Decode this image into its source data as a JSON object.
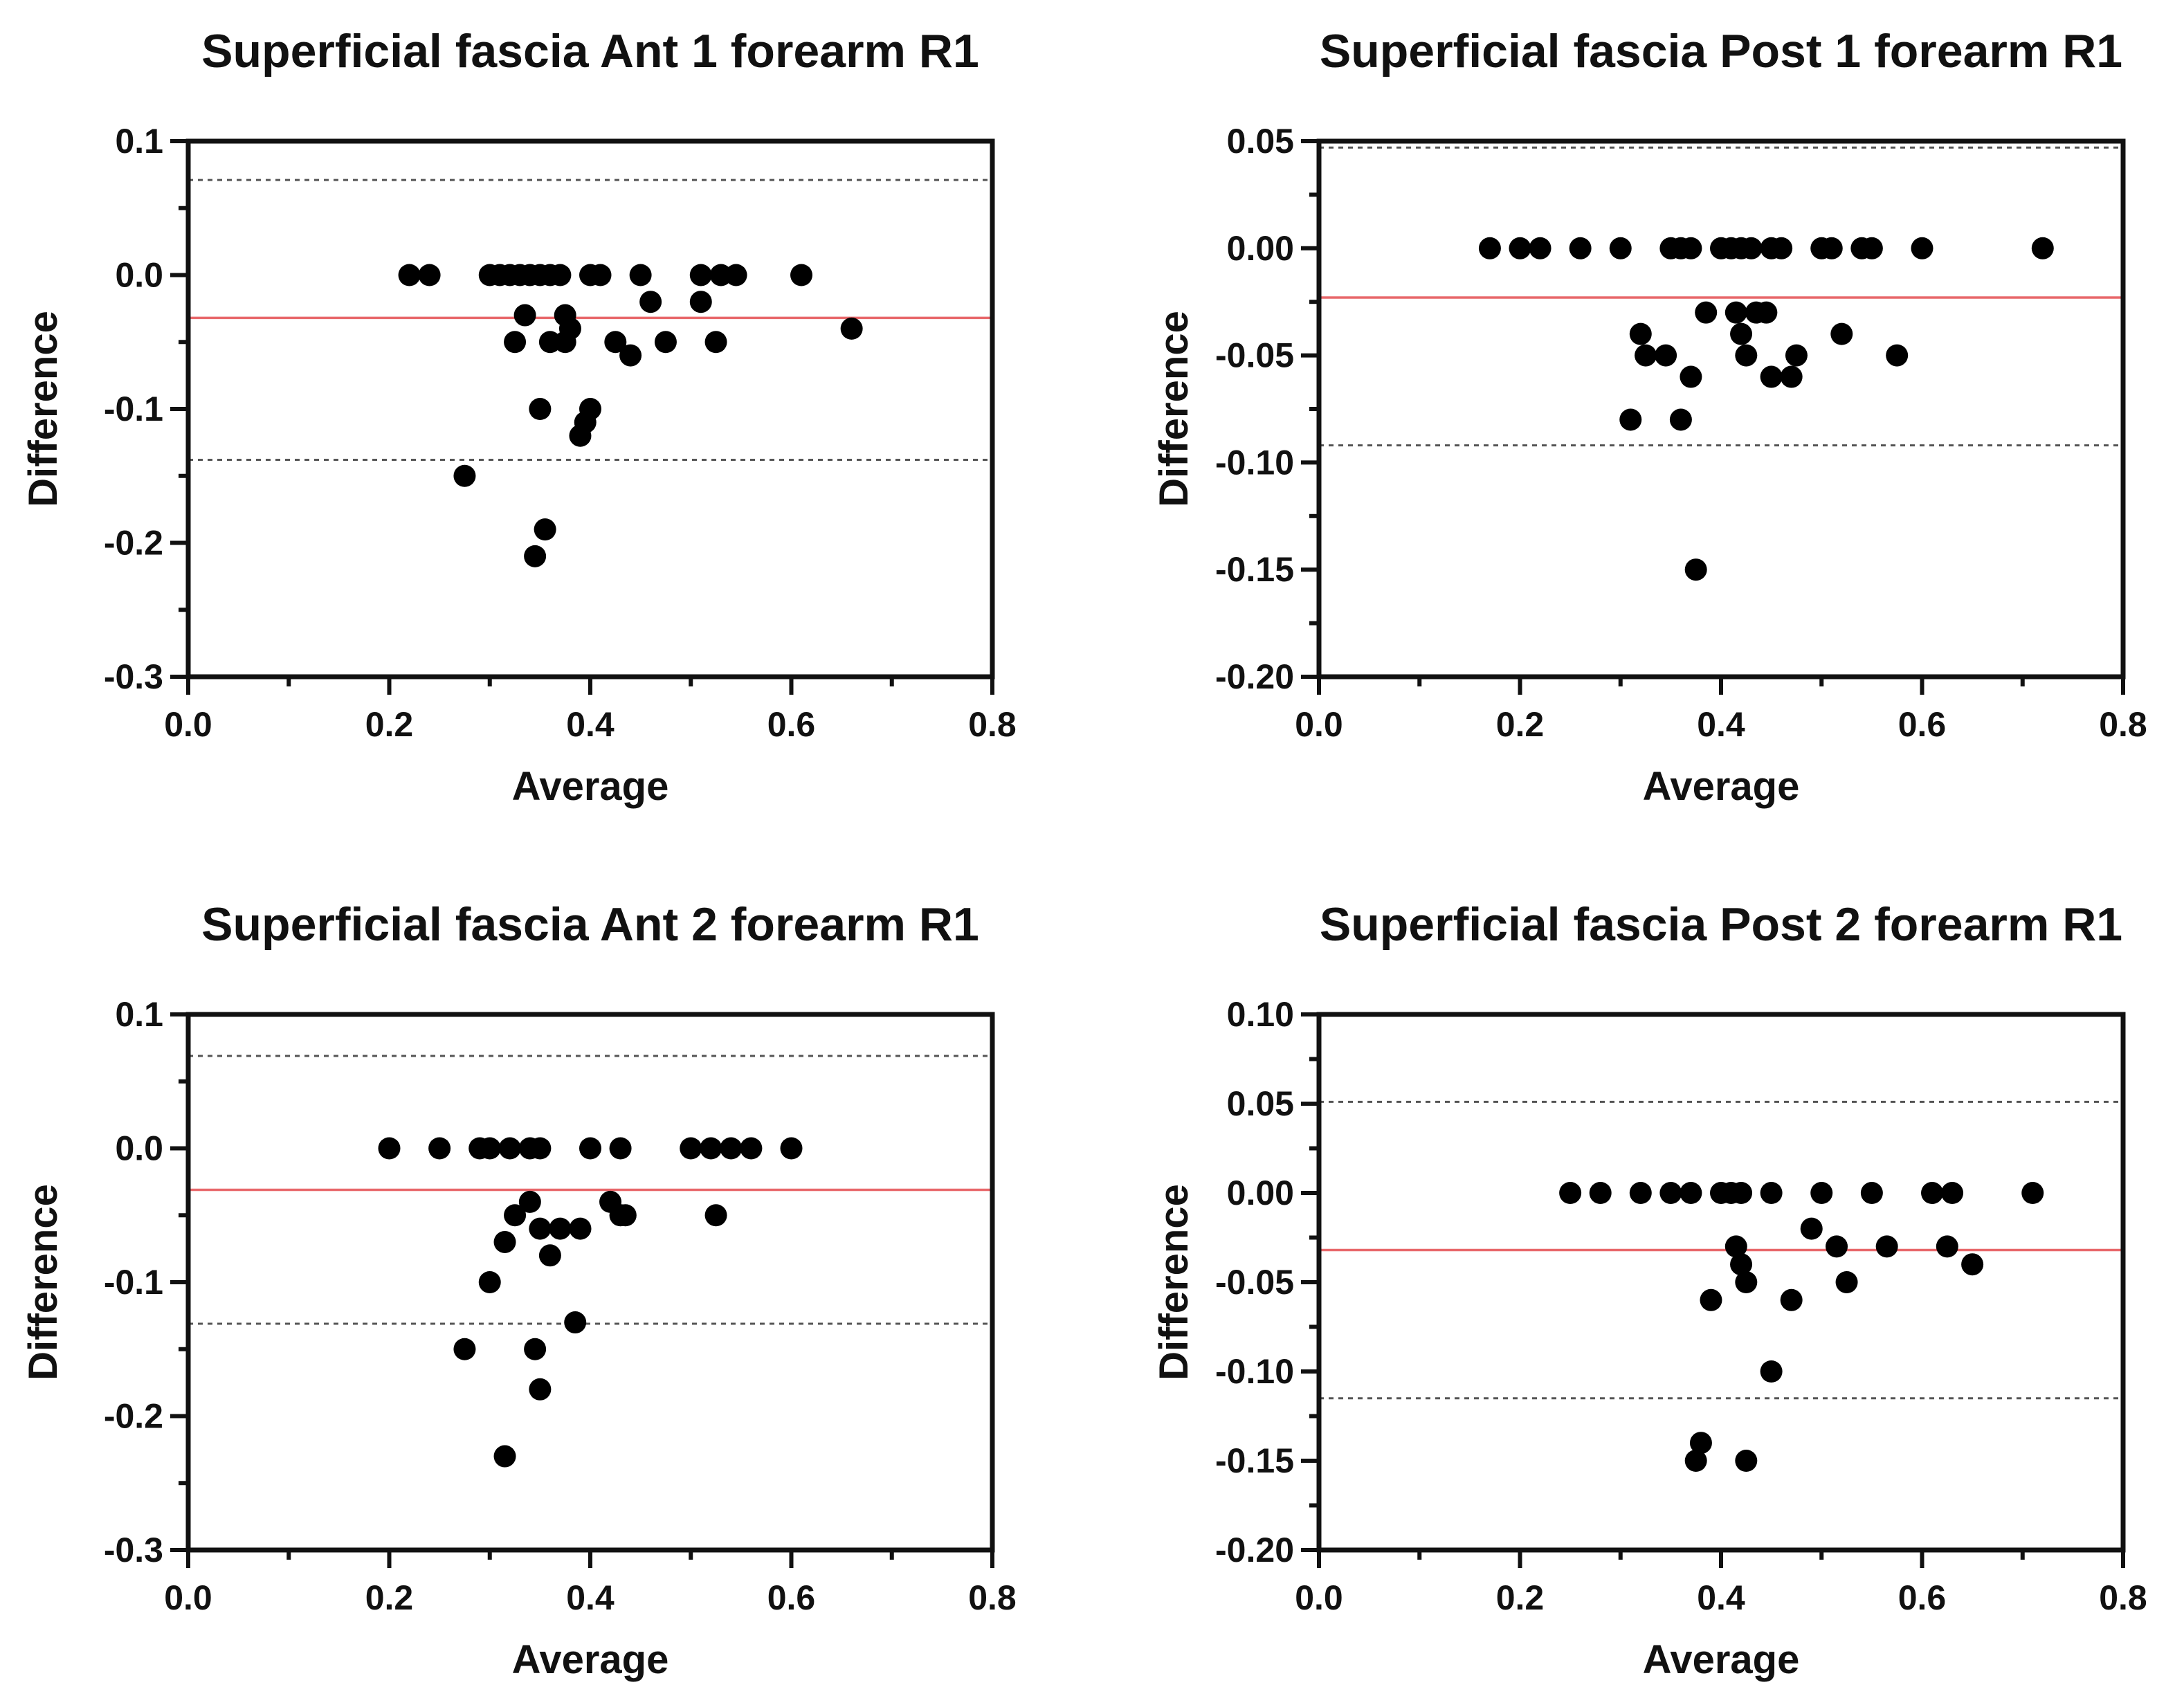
{
  "colors": {
    "bias": "#e8686b",
    "points": "#000000",
    "loa": "#555555"
  },
  "chart_data": [
    {
      "type": "scatter",
      "title": "Superficial fascia Ant 1 forearm R1",
      "xlabel": "Average",
      "ylabel": "Difference",
      "xlim": [
        0.0,
        0.8
      ],
      "ylim": [
        -0.3,
        0.1
      ],
      "xticks": [
        "0.0",
        "0.2",
        "0.4",
        "0.6",
        "0.8"
      ],
      "yticks": [
        "0.1",
        "0.0",
        "-0.1",
        "-0.2",
        "-0.3"
      ],
      "bias": -0.032,
      "loa_upper": 0.071,
      "loa_lower": -0.138,
      "points": [
        [
          0.22,
          0
        ],
        [
          0.24,
          0
        ],
        [
          0.3,
          0
        ],
        [
          0.31,
          0
        ],
        [
          0.32,
          0
        ],
        [
          0.33,
          0
        ],
        [
          0.34,
          0
        ],
        [
          0.35,
          0
        ],
        [
          0.36,
          0
        ],
        [
          0.37,
          0
        ],
        [
          0.4,
          0
        ],
        [
          0.41,
          0
        ],
        [
          0.45,
          0
        ],
        [
          0.51,
          0
        ],
        [
          0.53,
          0
        ],
        [
          0.545,
          0
        ],
        [
          0.61,
          0
        ],
        [
          0.46,
          -0.02
        ],
        [
          0.51,
          -0.02
        ],
        [
          0.335,
          -0.03
        ],
        [
          0.375,
          -0.03
        ],
        [
          0.38,
          -0.04
        ],
        [
          0.66,
          -0.04
        ],
        [
          0.325,
          -0.05
        ],
        [
          0.36,
          -0.05
        ],
        [
          0.375,
          -0.05
        ],
        [
          0.425,
          -0.05
        ],
        [
          0.475,
          -0.05
        ],
        [
          0.525,
          -0.05
        ],
        [
          0.44,
          -0.06
        ],
        [
          0.35,
          -0.1
        ],
        [
          0.4,
          -0.1
        ],
        [
          0.395,
          -0.11
        ],
        [
          0.39,
          -0.12
        ],
        [
          0.275,
          -0.15
        ],
        [
          0.355,
          -0.19
        ],
        [
          0.345,
          -0.21
        ]
      ]
    },
    {
      "type": "scatter",
      "title": "Superficial fascia Post 1 forearm R1",
      "xlabel": "Average",
      "ylabel": "Difference",
      "xlim": [
        0.0,
        0.8
      ],
      "ylim": [
        -0.2,
        0.05
      ],
      "xticks": [
        "0.0",
        "0.2",
        "0.4",
        "0.6",
        "0.8"
      ],
      "yticks": [
        "0.05",
        "0.00",
        "-0.05",
        "-0.10",
        "-0.15",
        "-0.20"
      ],
      "bias": -0.023,
      "loa_upper": 0.047,
      "loa_lower": -0.092,
      "points": [
        [
          0.17,
          0
        ],
        [
          0.2,
          0
        ],
        [
          0.22,
          0
        ],
        [
          0.26,
          0
        ],
        [
          0.3,
          0
        ],
        [
          0.35,
          0
        ],
        [
          0.36,
          0
        ],
        [
          0.37,
          0
        ],
        [
          0.4,
          0
        ],
        [
          0.41,
          0
        ],
        [
          0.42,
          0
        ],
        [
          0.43,
          0
        ],
        [
          0.45,
          0
        ],
        [
          0.46,
          0
        ],
        [
          0.5,
          0
        ],
        [
          0.51,
          0
        ],
        [
          0.54,
          0
        ],
        [
          0.55,
          0
        ],
        [
          0.6,
          0
        ],
        [
          0.72,
          0
        ],
        [
          0.385,
          -0.03
        ],
        [
          0.415,
          -0.03
        ],
        [
          0.435,
          -0.03
        ],
        [
          0.445,
          -0.03
        ],
        [
          0.32,
          -0.04
        ],
        [
          0.42,
          -0.04
        ],
        [
          0.52,
          -0.04
        ],
        [
          0.325,
          -0.05
        ],
        [
          0.345,
          -0.05
        ],
        [
          0.425,
          -0.05
        ],
        [
          0.475,
          -0.05
        ],
        [
          0.575,
          -0.05
        ],
        [
          0.37,
          -0.06
        ],
        [
          0.45,
          -0.06
        ],
        [
          0.47,
          -0.06
        ],
        [
          0.31,
          -0.08
        ],
        [
          0.36,
          -0.08
        ],
        [
          0.375,
          -0.15
        ]
      ]
    },
    {
      "type": "scatter",
      "title": "Superficial fascia Ant 2 forearm R1",
      "xlabel": "Average",
      "ylabel": "Difference",
      "xlim": [
        0.0,
        0.8
      ],
      "ylim": [
        -0.3,
        0.1
      ],
      "xticks": [
        "0.0",
        "0.2",
        "0.4",
        "0.6",
        "0.8"
      ],
      "yticks": [
        "0.1",
        "0.0",
        "-0.1",
        "-0.2",
        "-0.3"
      ],
      "bias": -0.031,
      "loa_upper": 0.069,
      "loa_lower": -0.131,
      "points": [
        [
          0.2,
          0
        ],
        [
          0.25,
          0
        ],
        [
          0.29,
          0
        ],
        [
          0.3,
          0
        ],
        [
          0.32,
          0
        ],
        [
          0.34,
          0
        ],
        [
          0.35,
          0
        ],
        [
          0.4,
          0
        ],
        [
          0.43,
          0
        ],
        [
          0.5,
          0
        ],
        [
          0.52,
          0
        ],
        [
          0.54,
          0
        ],
        [
          0.56,
          0
        ],
        [
          0.6,
          0
        ],
        [
          0.34,
          -0.04
        ],
        [
          0.42,
          -0.04
        ],
        [
          0.325,
          -0.05
        ],
        [
          0.43,
          -0.05
        ],
        [
          0.435,
          -0.05
        ],
        [
          0.525,
          -0.05
        ],
        [
          0.35,
          -0.06
        ],
        [
          0.37,
          -0.06
        ],
        [
          0.39,
          -0.06
        ],
        [
          0.315,
          -0.07
        ],
        [
          0.36,
          -0.08
        ],
        [
          0.3,
          -0.1
        ],
        [
          0.385,
          -0.13
        ],
        [
          0.275,
          -0.15
        ],
        [
          0.345,
          -0.15
        ],
        [
          0.35,
          -0.18
        ],
        [
          0.315,
          -0.23
        ]
      ]
    },
    {
      "type": "scatter",
      "title": "Superficial fascia Post 2 forearm R1",
      "xlabel": "Average",
      "ylabel": "Difference",
      "xlim": [
        0.0,
        0.8
      ],
      "ylim": [
        -0.2,
        0.1
      ],
      "xticks": [
        "0.0",
        "0.2",
        "0.4",
        "0.6",
        "0.8"
      ],
      "yticks": [
        "0.10",
        "0.05",
        "0.00",
        "-0.05",
        "-0.10",
        "-0.15",
        "-0.20"
      ],
      "bias": -0.032,
      "loa_upper": 0.051,
      "loa_lower": -0.115,
      "points": [
        [
          0.25,
          0
        ],
        [
          0.28,
          0
        ],
        [
          0.32,
          0
        ],
        [
          0.35,
          0
        ],
        [
          0.37,
          0
        ],
        [
          0.4,
          0
        ],
        [
          0.41,
          0
        ],
        [
          0.42,
          0
        ],
        [
          0.45,
          0
        ],
        [
          0.5,
          0
        ],
        [
          0.55,
          0
        ],
        [
          0.61,
          0
        ],
        [
          0.63,
          0
        ],
        [
          0.71,
          0
        ],
        [
          0.49,
          -0.02
        ],
        [
          0.415,
          -0.03
        ],
        [
          0.515,
          -0.03
        ],
        [
          0.565,
          -0.03
        ],
        [
          0.625,
          -0.03
        ],
        [
          0.42,
          -0.04
        ],
        [
          0.65,
          -0.04
        ],
        [
          0.425,
          -0.05
        ],
        [
          0.525,
          -0.05
        ],
        [
          0.39,
          -0.06
        ],
        [
          0.47,
          -0.06
        ],
        [
          0.45,
          -0.1
        ],
        [
          0.38,
          -0.14
        ],
        [
          0.375,
          -0.15
        ],
        [
          0.425,
          -0.15
        ]
      ]
    }
  ]
}
